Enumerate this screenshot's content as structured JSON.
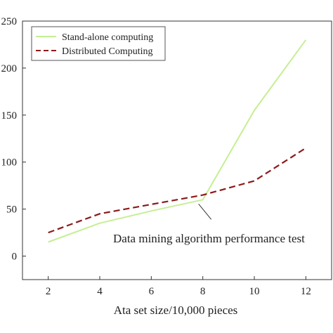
{
  "chart_data": {
    "type": "line",
    "title": "",
    "xlabel": "Ata set size/10,000 pieces",
    "ylabel": "",
    "x": [
      2,
      4,
      6,
      8,
      10,
      12
    ],
    "xticks": [
      2,
      4,
      6,
      8,
      10,
      12
    ],
    "yticks": [
      0,
      50,
      100,
      150,
      200,
      250
    ],
    "xlim": [
      1,
      13
    ],
    "ylim": [
      -25,
      250
    ],
    "grid": false,
    "legend_position": "top-left",
    "series": [
      {
        "name": "Stand-alone computing",
        "values": [
          15,
          35,
          48,
          60,
          155,
          230
        ],
        "color": "#c6ee94",
        "style": "solid"
      },
      {
        "name": "Distributed Computing",
        "values": [
          25,
          45,
          55,
          65,
          80,
          115
        ],
        "color": "#8b1a1a",
        "style": "dashed"
      }
    ],
    "annotations": [
      {
        "text": "Data mining algorithm performance test",
        "x": 8,
        "y": 60
      }
    ]
  }
}
